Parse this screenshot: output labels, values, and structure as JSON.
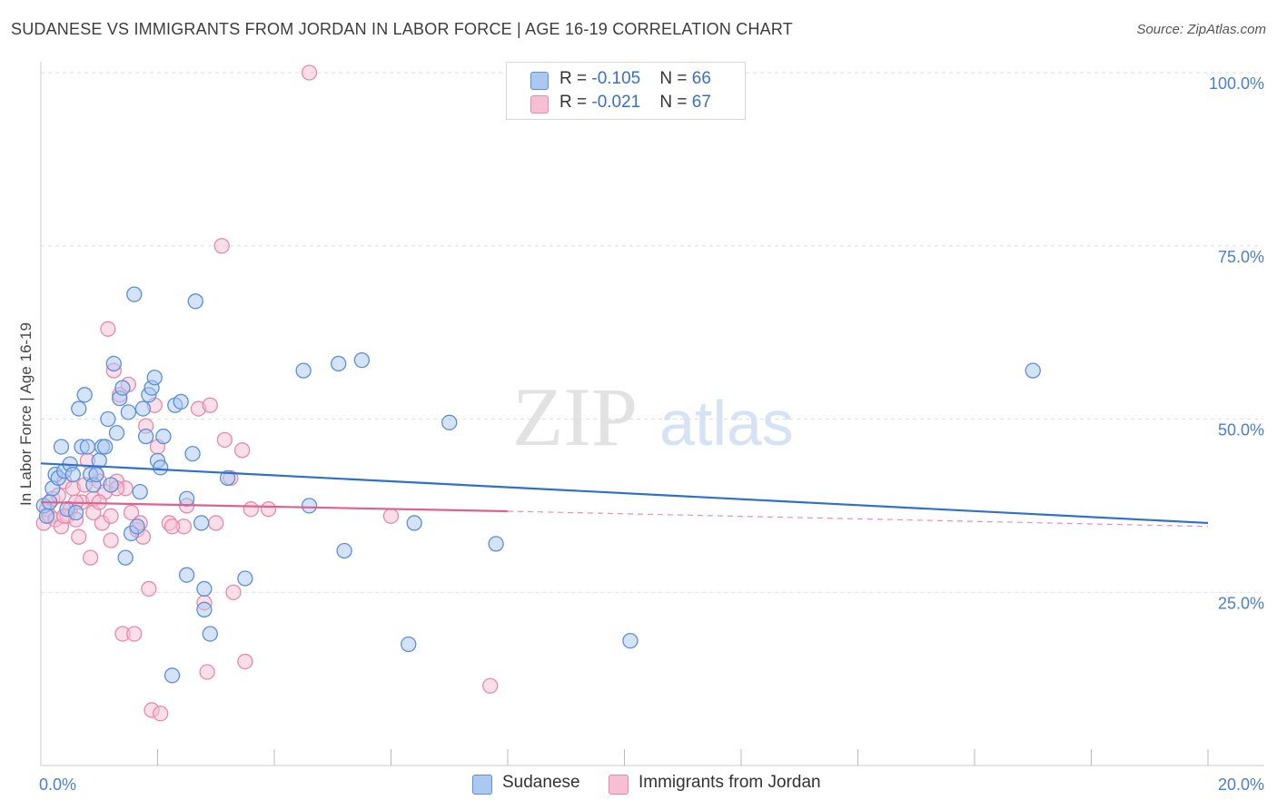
{
  "title": "SUDANESE VS IMMIGRANTS FROM JORDAN IN LABOR FORCE | AGE 16-19 CORRELATION CHART",
  "source": "Source: ZipAtlas.com",
  "watermark": {
    "zip": "ZIP",
    "atlas": "atlas"
  },
  "colors": {
    "sudanese_fill": "#aac8f0",
    "sudanese_stroke": "#5b8fd9",
    "sudanese_line": "#2f6fcf",
    "jordan_fill": "#f7bfd2",
    "jordan_stroke": "#e889a9",
    "jordan_line": "#e0608e",
    "tick_text": "#4a7fd0",
    "grid": "#dddddd"
  },
  "legend": {
    "rows": [
      {
        "r_label": "R = ",
        "r_value": "-0.105",
        "n_label": "N = ",
        "n_value": "66"
      },
      {
        "r_label": "R = ",
        "r_value": "-0.021",
        "n_label": "N = ",
        "n_value": "67"
      }
    ]
  },
  "bottom_legend": {
    "sudanese": "Sudanese",
    "jordan": "Immigrants from Jordan"
  },
  "chart_data": {
    "type": "scatter",
    "title": "SUDANESE VS IMMIGRANTS FROM JORDAN IN LABOR FORCE | AGE 16-19 CORRELATION CHART",
    "xlabel": "",
    "ylabel": "In Labor Force | Age 16-19",
    "xlim": [
      0,
      20
    ],
    "ylim": [
      0,
      100
    ],
    "x_tick_labels": [
      {
        "value": 0,
        "label": "0.0%"
      },
      {
        "value": 20,
        "label": "20.0%"
      }
    ],
    "y_tick_labels": [
      {
        "value": 25,
        "label": "25.0%"
      },
      {
        "value": 50,
        "label": "50.0%"
      },
      {
        "value": 75,
        "label": "75.0%"
      },
      {
        "value": 100,
        "label": "100.0%"
      }
    ],
    "x_minor_ticks": [
      2,
      4,
      6,
      8,
      10,
      12,
      14,
      16,
      18,
      20
    ],
    "series": [
      {
        "name": "Sudanese",
        "r": -0.105,
        "n": 66,
        "trend": {
          "x0": 0,
          "y0": 43.6,
          "x1": 20,
          "y1": 35.0
        },
        "points": [
          [
            0.05,
            37.5
          ],
          [
            0.1,
            36
          ],
          [
            0.15,
            38
          ],
          [
            0.2,
            40
          ],
          [
            0.25,
            42
          ],
          [
            0.3,
            41.5
          ],
          [
            0.35,
            46
          ],
          [
            0.4,
            42.5
          ],
          [
            0.45,
            37
          ],
          [
            0.5,
            43.5
          ],
          [
            0.55,
            42
          ],
          [
            0.6,
            36.5
          ],
          [
            0.65,
            51.5
          ],
          [
            0.7,
            46
          ],
          [
            0.75,
            53.5
          ],
          [
            0.8,
            46
          ],
          [
            0.85,
            42
          ],
          [
            0.9,
            40.5
          ],
          [
            0.95,
            42
          ],
          [
            1.0,
            44
          ],
          [
            1.05,
            46
          ],
          [
            1.1,
            46
          ],
          [
            1.15,
            50
          ],
          [
            1.2,
            40.5
          ],
          [
            1.25,
            58
          ],
          [
            1.3,
            48
          ],
          [
            1.35,
            53
          ],
          [
            1.4,
            54.5
          ],
          [
            1.45,
            30
          ],
          [
            1.5,
            51
          ],
          [
            1.55,
            33.5
          ],
          [
            1.6,
            68
          ],
          [
            1.65,
            34.5
          ],
          [
            1.7,
            39.5
          ],
          [
            1.75,
            51.5
          ],
          [
            1.8,
            47.5
          ],
          [
            1.85,
            53.5
          ],
          [
            1.9,
            54.5
          ],
          [
            1.95,
            56
          ],
          [
            2.0,
            44
          ],
          [
            2.05,
            43
          ],
          [
            2.1,
            47.5
          ],
          [
            2.25,
            13
          ],
          [
            2.3,
            52
          ],
          [
            2.4,
            52.5
          ],
          [
            2.5,
            38.5
          ],
          [
            2.6,
            45
          ],
          [
            2.65,
            67
          ],
          [
            2.75,
            35
          ],
          [
            2.8,
            25.5
          ],
          [
            2.8,
            22.5
          ],
          [
            2.5,
            27.5
          ],
          [
            2.9,
            19
          ],
          [
            3.2,
            41.5
          ],
          [
            3.5,
            27
          ],
          [
            4.6,
            37.5
          ],
          [
            4.5,
            57
          ],
          [
            5.1,
            58
          ],
          [
            5.2,
            31
          ],
          [
            5.5,
            58.5
          ],
          [
            6.3,
            17.5
          ],
          [
            6.4,
            35
          ],
          [
            7.0,
            49.5
          ],
          [
            7.8,
            32
          ],
          [
            10.1,
            18
          ],
          [
            17.0,
            57
          ]
        ]
      },
      {
        "name": "Immigrants from Jordan",
        "r": -0.021,
        "n": 67,
        "trend": {
          "x0": 0,
          "y0": 38.0,
          "x1": 8.0,
          "y1": 36.7
        },
        "trend_dashed": {
          "x0": 8.0,
          "y0": 36.7,
          "x1": 20,
          "y1": 34.5
        },
        "points": [
          [
            0.05,
            35
          ],
          [
            0.1,
            37
          ],
          [
            0.15,
            36
          ],
          [
            0.2,
            38.5
          ],
          [
            0.25,
            35.5
          ],
          [
            0.3,
            39
          ],
          [
            0.35,
            34.5
          ],
          [
            0.4,
            41
          ],
          [
            0.45,
            36
          ],
          [
            0.5,
            37
          ],
          [
            0.55,
            40
          ],
          [
            0.6,
            35.5
          ],
          [
            0.65,
            33
          ],
          [
            0.7,
            38
          ],
          [
            0.75,
            40.5
          ],
          [
            0.8,
            44
          ],
          [
            0.85,
            30
          ],
          [
            0.9,
            38.5
          ],
          [
            0.95,
            42
          ],
          [
            1.0,
            41
          ],
          [
            1.05,
            35
          ],
          [
            1.1,
            39.5
          ],
          [
            1.15,
            63
          ],
          [
            1.2,
            36
          ],
          [
            1.25,
            57
          ],
          [
            1.3,
            41
          ],
          [
            1.35,
            53.5
          ],
          [
            1.4,
            19
          ],
          [
            1.45,
            40
          ],
          [
            1.5,
            55
          ],
          [
            1.55,
            36.5
          ],
          [
            1.6,
            19
          ],
          [
            1.65,
            34
          ],
          [
            1.7,
            35
          ],
          [
            1.75,
            33
          ],
          [
            1.8,
            49
          ],
          [
            1.85,
            25.5
          ],
          [
            1.9,
            8
          ],
          [
            1.95,
            52
          ],
          [
            2.0,
            46
          ],
          [
            2.05,
            7.5
          ],
          [
            2.2,
            35
          ],
          [
            2.45,
            34.5
          ],
          [
            2.5,
            37.5
          ],
          [
            2.7,
            51.5
          ],
          [
            2.8,
            23.5
          ],
          [
            2.85,
            13.5
          ],
          [
            3.0,
            35
          ],
          [
            3.1,
            75
          ],
          [
            3.15,
            47
          ],
          [
            3.3,
            25
          ],
          [
            3.45,
            45.5
          ],
          [
            3.5,
            15
          ],
          [
            3.6,
            37
          ],
          [
            3.9,
            37
          ],
          [
            4.6,
            100
          ],
          [
            6.0,
            36
          ],
          [
            7.7,
            11.5
          ],
          [
            1.2,
            32.5
          ],
          [
            2.9,
            52
          ],
          [
            0.6,
            38
          ],
          [
            0.9,
            36.5
          ],
          [
            1.3,
            40
          ],
          [
            1.0,
            38
          ],
          [
            3.25,
            41.5
          ],
          [
            2.25,
            34.5
          ],
          [
            0.4,
            36
          ]
        ]
      }
    ]
  }
}
